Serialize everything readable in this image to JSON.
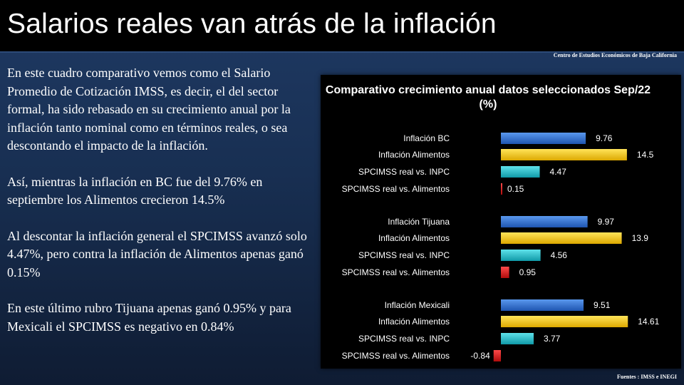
{
  "slide": {
    "title": "Salarios reales van atrás de la inflación",
    "source_top": "Centro de Estudios  Económicos  de Baja California",
    "source_bottom": "Fuentes :  IMSS e  INEGI"
  },
  "body": {
    "paragraphs": [
      "En este cuadro comparativo vemos como el Salario Promedio de Cotización IMSS, es decir, el del sector formal, ha sido rebasado en su crecimiento anual por la inflación tanto nominal como en términos reales, o sea descontando el impacto de la inflación.",
      "Así, mientras la inflación en BC fue del 9.76% en septiembre los Alimentos  crecieron 14.5%",
      "Al descontar la inflación general el SPCIMSS avanzó solo  4.47%, pero contra la inflación de Alimentos apenas ganó  0.15%",
      "En este último rubro Tijuana apenas ganó 0.95% y para Mexicali el SPCIMSS  es negativo en 0.84%"
    ]
  },
  "chart_data": {
    "type": "bar",
    "orientation": "horizontal",
    "title": "Comparativo crecimiento anual datos seleccionados Sep/22 (%)",
    "categories": [
      "Inflación BC",
      "Inflación Alimentos",
      "SPCIMSS real vs. INPC",
      "SPCIMSS  real vs. Alimentos",
      "Inflación Tijuana",
      "Inflación Alimentos",
      "SPCIMSS real vs. INPC",
      "SPCIMSS  real vs. Alimentos",
      "Inflación Mexicali",
      "Inflación Alimentos",
      "SPCIMSS real vs. INPC",
      "SPCIMSS  real vs. Alimentos"
    ],
    "values": [
      9.76,
      14.5,
      4.47,
      0.15,
      9.97,
      13.9,
      4.56,
      0.95,
      9.51,
      14.61,
      3.77,
      -0.84
    ],
    "data_labels": [
      "9.76",
      "14.5",
      "4.47",
      "0.15",
      "9.97",
      "13.9",
      "4.56",
      "0.95",
      "9.51",
      "14.61",
      "3.77",
      "-0.84"
    ],
    "bar_types": [
      "inflation",
      "food",
      "real",
      "real_food",
      "inflation",
      "food",
      "real",
      "real_food",
      "inflation",
      "food",
      "real",
      "real_food"
    ],
    "groups": [
      "Baja California",
      "Tijuana",
      "Mexicali"
    ],
    "xlim": [
      -2,
      16
    ],
    "grid": false,
    "legend": "none",
    "colors": {
      "inflation": "#2f6fd0",
      "food": "#f2c200",
      "real": "#18b6c4",
      "real_food": "#d81818",
      "text": "#ffffff"
    }
  }
}
